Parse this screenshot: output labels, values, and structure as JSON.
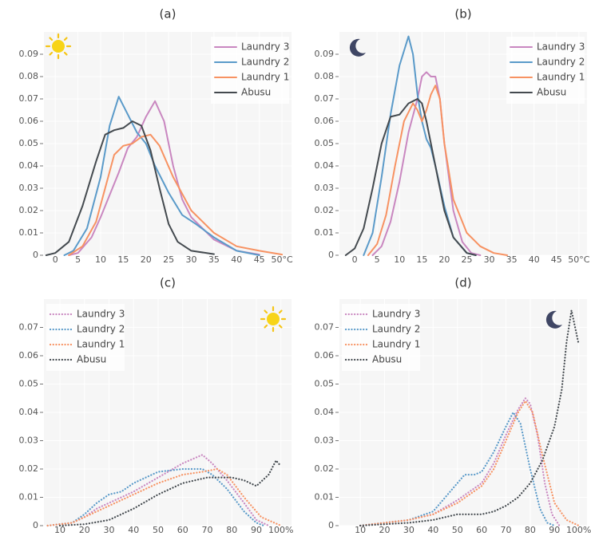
{
  "chart_data": [
    {
      "type": "line",
      "title": "(a)",
      "legend": "upper right",
      "line_style": "solid",
      "grid": true,
      "xlim": [
        -2.5,
        52.1
      ],
      "ylim": [
        0,
        0.1
      ],
      "xticks": [
        0,
        5,
        10,
        15,
        20,
        25,
        30,
        35,
        40,
        45,
        {
          "value": 50,
          "label": "50°C"
        }
      ],
      "yticks": [
        0,
        0.01,
        0.02,
        0.03,
        0.04,
        0.05,
        0.06,
        0.07,
        0.08,
        0.09
      ],
      "series": [
        {
          "name": "Laundry 3",
          "color": "#c987c0",
          "x": [
            3,
            5,
            8,
            10,
            12,
            14,
            16,
            18,
            20,
            22,
            24,
            26,
            28,
            30,
            35,
            40,
            45
          ],
          "values": [
            0,
            0.001,
            0.008,
            0.017,
            0.027,
            0.037,
            0.048,
            0.053,
            0.062,
            0.069,
            0.06,
            0.04,
            0.025,
            0.017,
            0.007,
            0.002,
            0.0003
          ]
        },
        {
          "name": "Laundry 2",
          "color": "#5a9ac9",
          "x": [
            2,
            4,
            7,
            10,
            12,
            14,
            16,
            18,
            20,
            22,
            25,
            28,
            31,
            35,
            40,
            45
          ],
          "values": [
            0,
            0.002,
            0.012,
            0.035,
            0.058,
            0.071,
            0.063,
            0.055,
            0.05,
            0.04,
            0.028,
            0.018,
            0.014,
            0.008,
            0.002,
            0
          ]
        },
        {
          "name": "Laundry 1",
          "color": "#f79262",
          "x": [
            3,
            6,
            9,
            11,
            13,
            15,
            17,
            19,
            21,
            23,
            26,
            30,
            35,
            40,
            45,
            50
          ],
          "values": [
            0,
            0.004,
            0.015,
            0.03,
            0.045,
            0.049,
            0.05,
            0.053,
            0.054,
            0.049,
            0.035,
            0.02,
            0.01,
            0.004,
            0.002,
            0.0003
          ]
        },
        {
          "name": "Abusu",
          "color": "#444a4f",
          "x": [
            -2,
            0,
            3,
            6,
            9,
            11,
            13,
            15,
            17,
            19,
            21,
            23,
            25,
            27,
            30,
            35
          ],
          "values": [
            0,
            0.001,
            0.006,
            0.022,
            0.042,
            0.054,
            0.056,
            0.057,
            0.06,
            0.058,
            0.047,
            0.03,
            0.014,
            0.006,
            0.002,
            0.0005
          ]
        }
      ]
    },
    {
      "type": "line",
      "title": "(b)",
      "legend": "upper right",
      "line_style": "solid",
      "grid": true,
      "xlim": [
        -3.4,
        51.8
      ],
      "ylim": [
        0,
        0.1
      ],
      "xticks": [
        0,
        5,
        10,
        15,
        20,
        25,
        30,
        35,
        40,
        45,
        {
          "value": 50,
          "label": "50°C"
        }
      ],
      "yticks": [
        0,
        0.01,
        0.02,
        0.03,
        0.04,
        0.05,
        0.06,
        0.07,
        0.08,
        0.09
      ],
      "series": [
        {
          "name": "Laundry 3",
          "color": "#c987c0",
          "x": [
            4,
            6,
            8,
            10,
            12,
            14,
            15,
            16,
            17,
            18,
            19,
            20,
            22,
            24,
            26,
            28
          ],
          "values": [
            0,
            0.004,
            0.015,
            0.033,
            0.055,
            0.07,
            0.08,
            0.082,
            0.08,
            0.08,
            0.07,
            0.05,
            0.02,
            0.006,
            0.001,
            0
          ]
        },
        {
          "name": "Laundry 2",
          "color": "#5a9ac9",
          "x": [
            2,
            4,
            6,
            8,
            10,
            12,
            13,
            14,
            15,
            16,
            17,
            18,
            20,
            22,
            25,
            27
          ],
          "values": [
            0,
            0.01,
            0.035,
            0.063,
            0.085,
            0.098,
            0.09,
            0.072,
            0.06,
            0.052,
            0.048,
            0.04,
            0.022,
            0.008,
            0.001,
            0
          ]
        },
        {
          "name": "Laundry 1",
          "color": "#f79262",
          "x": [
            3,
            5,
            7,
            9,
            11,
            13,
            14,
            15,
            16,
            17,
            18,
            19,
            20,
            22,
            25,
            28,
            31,
            34
          ],
          "values": [
            0,
            0.005,
            0.018,
            0.04,
            0.06,
            0.068,
            0.065,
            0.06,
            0.065,
            0.072,
            0.076,
            0.07,
            0.05,
            0.025,
            0.01,
            0.004,
            0.001,
            0
          ]
        },
        {
          "name": "Abusu",
          "color": "#444a4f",
          "x": [
            -2,
            0,
            2,
            4,
            6,
            8,
            10,
            12,
            14,
            15,
            16,
            18,
            20,
            22,
            25,
            27
          ],
          "values": [
            0,
            0.003,
            0.012,
            0.03,
            0.05,
            0.062,
            0.063,
            0.068,
            0.07,
            0.068,
            0.06,
            0.04,
            0.02,
            0.008,
            0.001,
            0
          ]
        }
      ]
    },
    {
      "type": "line",
      "title": "(c)",
      "legend": "upper left",
      "line_style": "dotted",
      "grid": true,
      "xlim": [
        3.5,
        104.3
      ],
      "ylim": [
        0,
        0.08
      ],
      "xticks": [
        10,
        20,
        30,
        40,
        50,
        60,
        70,
        80,
        90,
        {
          "value": 100,
          "label": "100%"
        }
      ],
      "yticks": [
        0,
        0.01,
        0.02,
        0.03,
        0.04,
        0.05,
        0.06,
        0.07
      ],
      "series": [
        {
          "name": "Laundry 3",
          "color": "#c987c0",
          "x": [
            5,
            15,
            20,
            25,
            30,
            40,
            50,
            60,
            68,
            72,
            78,
            85,
            90,
            95
          ],
          "values": [
            0,
            0.001,
            0.003,
            0.006,
            0.008,
            0.012,
            0.017,
            0.022,
            0.025,
            0.022,
            0.016,
            0.008,
            0.002,
            0
          ]
        },
        {
          "name": "Laundry 2",
          "color": "#5a9ac9",
          "x": [
            5,
            15,
            20,
            25,
            30,
            35,
            40,
            50,
            60,
            68,
            72,
            78,
            85,
            90,
            93
          ],
          "values": [
            0,
            0.001,
            0.004,
            0.008,
            0.011,
            0.012,
            0.015,
            0.019,
            0.02,
            0.02,
            0.018,
            0.013,
            0.005,
            0.001,
            0
          ]
        },
        {
          "name": "Laundry 1",
          "color": "#f79262",
          "x": [
            5,
            15,
            20,
            25,
            30,
            40,
            50,
            60,
            68,
            74,
            78,
            85,
            92,
            100
          ],
          "values": [
            0,
            0.001,
            0.003,
            0.005,
            0.007,
            0.011,
            0.015,
            0.018,
            0.019,
            0.02,
            0.018,
            0.01,
            0.003,
            0
          ]
        },
        {
          "name": "Abusu",
          "color": "#444a4f",
          "x": [
            10,
            20,
            30,
            40,
            50,
            60,
            70,
            80,
            85,
            90,
            95,
            98,
            100
          ],
          "values": [
            0,
            0.0005,
            0.002,
            0.006,
            0.011,
            0.015,
            0.017,
            0.017,
            0.016,
            0.014,
            0.018,
            0.023,
            0.021
          ]
        }
      ]
    },
    {
      "type": "line",
      "title": "(d)",
      "legend": "upper left",
      "line_style": "dotted",
      "grid": true,
      "xlim": [
        1.4,
        103.4
      ],
      "ylim": [
        0,
        0.08
      ],
      "xticks": [
        10,
        20,
        30,
        40,
        50,
        60,
        70,
        80,
        90,
        {
          "value": 100,
          "label": "100%"
        }
      ],
      "yticks": [
        0,
        0.01,
        0.02,
        0.03,
        0.04,
        0.05,
        0.06,
        0.07
      ],
      "series": [
        {
          "name": "Laundry 3",
          "color": "#c987c0",
          "x": [
            10,
            20,
            30,
            40,
            50,
            55,
            60,
            65,
            70,
            75,
            78,
            80,
            83,
            86,
            89,
            92
          ],
          "values": [
            0,
            0.001,
            0.002,
            0.004,
            0.009,
            0.012,
            0.015,
            0.022,
            0.032,
            0.041,
            0.045,
            0.043,
            0.032,
            0.015,
            0.004,
            0
          ]
        },
        {
          "name": "Laundry 2",
          "color": "#5a9ac9",
          "x": [
            10,
            20,
            30,
            40,
            45,
            50,
            53,
            57,
            60,
            65,
            70,
            73,
            76,
            80,
            84,
            87,
            90
          ],
          "values": [
            0,
            0.001,
            0.002,
            0.005,
            0.01,
            0.015,
            0.018,
            0.018,
            0.019,
            0.026,
            0.035,
            0.04,
            0.036,
            0.02,
            0.006,
            0.001,
            0
          ]
        },
        {
          "name": "Laundry 1",
          "color": "#f79262",
          "x": [
            10,
            20,
            30,
            40,
            50,
            55,
            60,
            65,
            70,
            75,
            78,
            81,
            85,
            90,
            95,
            100
          ],
          "values": [
            0,
            0.001,
            0.002,
            0.004,
            0.008,
            0.011,
            0.014,
            0.02,
            0.03,
            0.04,
            0.044,
            0.04,
            0.025,
            0.008,
            0.002,
            0
          ]
        },
        {
          "name": "Abusu",
          "color": "#444a4f",
          "x": [
            10,
            30,
            40,
            50,
            60,
            65,
            70,
            75,
            80,
            85,
            90,
            93,
            95,
            97,
            99,
            100
          ],
          "values": [
            0,
            0.001,
            0.002,
            0.004,
            0.004,
            0.005,
            0.007,
            0.01,
            0.015,
            0.023,
            0.035,
            0.048,
            0.065,
            0.076,
            0.068,
            0.064
          ]
        }
      ]
    }
  ]
}
